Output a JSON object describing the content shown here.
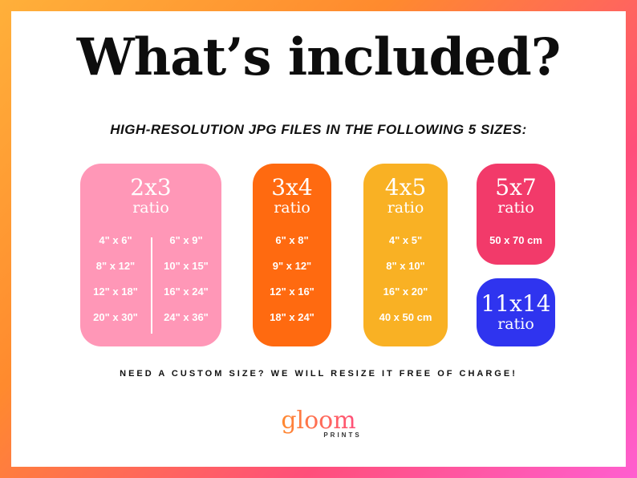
{
  "title": "What’s included?",
  "subtitle": "HIGH-RESOLUTION JPG FILES IN THE FOLLOWING 5 SIZES:",
  "ratio_word": "ratio",
  "boxes": {
    "r2x3": {
      "label": "2x3",
      "color": "#ff97b7",
      "left_sizes": [
        "4\" x 6\"",
        "8\" x 12\"",
        "12\" x 18\"",
        "20\" x 30\""
      ],
      "right_sizes": [
        "6\" x 9\"",
        "10\" x 15\"",
        "16\" x 24\"",
        "24\" x 36\""
      ]
    },
    "r3x4": {
      "label": "3x4",
      "color": "#ff6a10",
      "sizes": [
        "6\" x 8\"",
        "9\" x 12\"",
        "12\" x 16\"",
        "18\" x 24\""
      ]
    },
    "r4x5": {
      "label": "4x5",
      "color": "#f9b124",
      "sizes": [
        "4\" x 5\"",
        "8\" x 10\"",
        "16\" x 20\"",
        "40 x 50 cm"
      ]
    },
    "r5x7": {
      "label": "5x7",
      "color": "#f23a6a",
      "sizes": [
        "50 x 70 cm"
      ]
    },
    "r11x14": {
      "label": "11x14",
      "color": "#2f34ef"
    }
  },
  "footer": "NEED A CUSTOM SIZE? WE WILL RESIZE IT FREE OF CHARGE!",
  "logo": {
    "name": "gloom",
    "sub": "PRINTS"
  },
  "colors": {
    "gradient_start": "#ffb03a",
    "gradient_end": "#ff5fd0"
  }
}
